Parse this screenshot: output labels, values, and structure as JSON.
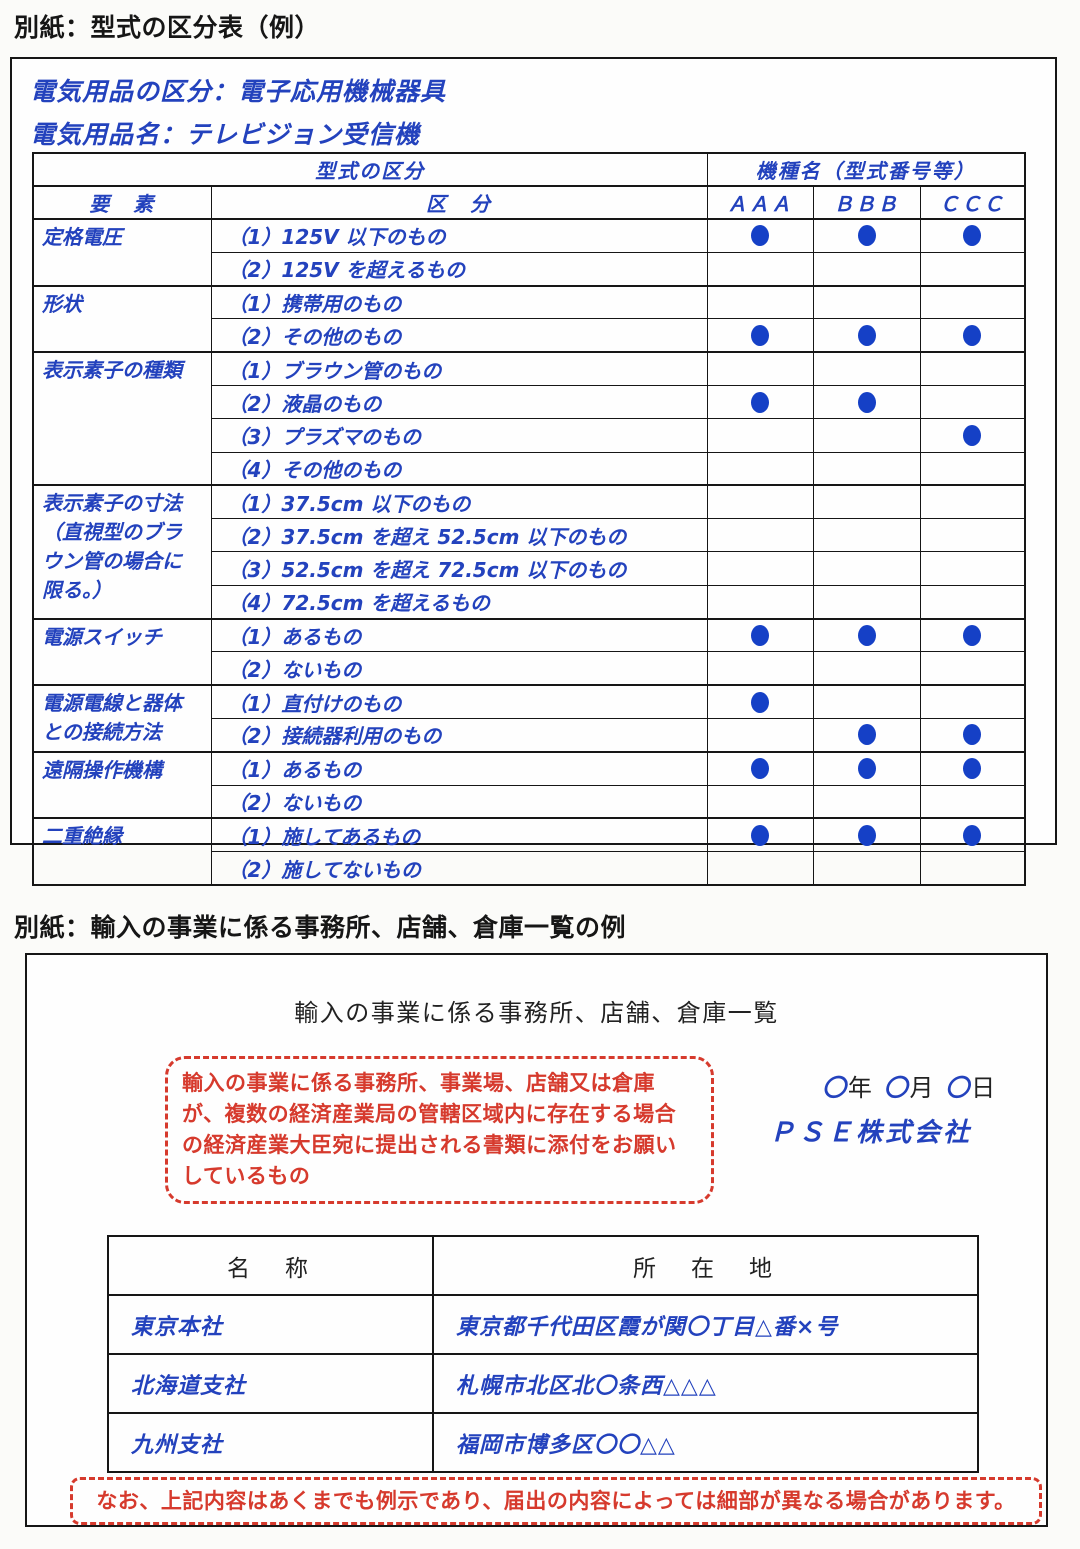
{
  "sections": {
    "type_table_title": "別紙：型式の区分表（例）",
    "import_list_title": "別紙：輸入の事業に係る事務所、店舗、倉庫一覧の例"
  },
  "classification": {
    "category_line": "電気用品の区分：電子応用機械器具",
    "product_line": "電気用品名：テレビジョン受信機",
    "header": {
      "type_division": "型式の区分",
      "model_names": "機種名（型式番号等）",
      "element": "要　素",
      "division": "区　分",
      "models": [
        "ＡＡＡ",
        "ＢＢＢ",
        "ＣＣＣ"
      ]
    },
    "groups": [
      {
        "element": "定格電圧",
        "rows": [
          {
            "label": "（1）125V 以下のもの",
            "marks": [
              1,
              1,
              1
            ]
          },
          {
            "label": "（2）125V を超えるもの",
            "marks": [
              0,
              0,
              0
            ]
          }
        ]
      },
      {
        "element": "形状",
        "rows": [
          {
            "label": "（1）携帯用のもの",
            "marks": [
              0,
              0,
              0
            ]
          },
          {
            "label": "（2）その他のもの",
            "marks": [
              1,
              1,
              1
            ]
          }
        ]
      },
      {
        "element": "表示素子の種類",
        "rows": [
          {
            "label": "（1）ブラウン管のもの",
            "marks": [
              0,
              0,
              0
            ]
          },
          {
            "label": "（2）液晶のもの",
            "marks": [
              1,
              1,
              0
            ]
          },
          {
            "label": "（3）プラズマのもの",
            "marks": [
              0,
              0,
              1
            ]
          },
          {
            "label": "（4）その他のもの",
            "marks": [
              0,
              0,
              0
            ]
          }
        ]
      },
      {
        "element": "表示素子の寸法\n（直視型のブラ\nウン管の場合に\n限る。）",
        "rows": [
          {
            "label": "（1）37.5cm 以下のもの",
            "marks": [
              0,
              0,
              0
            ]
          },
          {
            "label": "（2）37.5cm を超え 52.5cm 以下のもの",
            "marks": [
              0,
              0,
              0
            ]
          },
          {
            "label": "（3）52.5cm を超え 72.5cm 以下のもの",
            "marks": [
              0,
              0,
              0
            ]
          },
          {
            "label": "（4）72.5cm を超えるもの",
            "marks": [
              0,
              0,
              0
            ]
          }
        ]
      },
      {
        "element": "電源スイッチ",
        "rows": [
          {
            "label": "（1）あるもの",
            "marks": [
              1,
              1,
              1
            ]
          },
          {
            "label": "（2）ないもの",
            "marks": [
              0,
              0,
              0
            ]
          }
        ]
      },
      {
        "element": "電源電線と器体\nとの接続方法",
        "rows": [
          {
            "label": "（1）直付けのもの",
            "marks": [
              1,
              0,
              0
            ]
          },
          {
            "label": "（2）接続器利用のもの",
            "marks": [
              0,
              1,
              1
            ]
          }
        ]
      },
      {
        "element": "遠隔操作機構",
        "rows": [
          {
            "label": "（1）あるもの",
            "marks": [
              1,
              1,
              1
            ]
          },
          {
            "label": "（2）ないもの",
            "marks": [
              0,
              0,
              0
            ]
          }
        ]
      },
      {
        "element": "二重絶縁",
        "rows": [
          {
            "label": "（1）施してあるもの",
            "marks": [
              1,
              1,
              1
            ]
          },
          {
            "label": "（2）施してないもの",
            "marks": [
              0,
              0,
              0
            ]
          }
        ]
      }
    ]
  },
  "import_list": {
    "title": "輸入の事業に係る事務所、店舗、倉庫一覧",
    "note": "輸入の事業に係る事務所、事業場、店舗又は倉庫が、複数の経済産業局の管轄区域内に存在する場合の経済産業大臣宛に提出される書類に添付をお願いしているもの",
    "date_parts": [
      {
        "t": "〇",
        "c": "o"
      },
      {
        "t": "年 ",
        "c": "k"
      },
      {
        "t": "〇",
        "c": "o"
      },
      {
        "t": "月 ",
        "c": "k"
      },
      {
        "t": "〇",
        "c": "o"
      },
      {
        "t": "日",
        "c": "k"
      }
    ],
    "company": "ＰＳＥ株式会社",
    "table": {
      "headers": [
        "名　称",
        "所　在　地"
      ],
      "rows": [
        {
          "name": "東京本社",
          "address": "東京都千代田区霞が関〇丁目△番×号"
        },
        {
          "name": "北海道支社",
          "address": "札幌市北区北〇条西△△△"
        },
        {
          "name": "九州支社",
          "address": "福岡市博多区〇〇△△"
        }
      ]
    },
    "footer_note": "なお、上記内容はあくまでも例示であり、届出の内容によっては細部が異なる場合があります。"
  },
  "colors": {
    "blue_text": "#2342bd",
    "dot_blue": "#1540c6",
    "red_accent": "#d63a2d",
    "border_black": "#161616"
  }
}
